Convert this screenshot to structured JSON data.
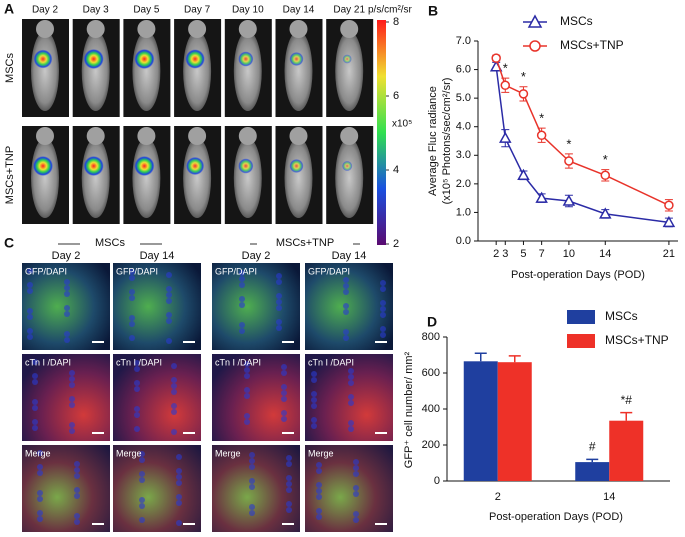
{
  "panel_a": {
    "letter": "A",
    "days": [
      "Day 2",
      "Day 3",
      "Day 5",
      "Day 7",
      "Day 10",
      "Day 14",
      "Day 21"
    ],
    "rows": [
      "MSCs",
      "MSCs+TNP"
    ],
    "colorbar": {
      "unit": "p/s/cm²/sr",
      "scale": "x10⁵",
      "lim": [
        2,
        8
      ],
      "ticks": [
        8,
        6,
        4,
        2
      ]
    }
  },
  "panel_c": {
    "letter": "C",
    "groups": [
      "MSCs",
      "MSCs+TNP"
    ],
    "days": [
      "Day 2",
      "Day 14",
      "Day 2",
      "Day 14"
    ],
    "rows": [
      "GFP/DAPI",
      "cTn I /DAPI",
      "Merge"
    ]
  },
  "chart_data": [
    {
      "type": "line",
      "panel": "B",
      "x": [
        2,
        3,
        5,
        7,
        10,
        14,
        21
      ],
      "xlim": [
        0,
        22
      ],
      "xticks": [
        2,
        3,
        5,
        7,
        10,
        14,
        21
      ],
      "ylim": [
        0,
        7
      ],
      "yticks": [
        {
          "value": 0,
          "label": "0.0"
        },
        {
          "value": 1,
          "label": "1.0"
        },
        {
          "value": 2,
          "label": "2.0"
        },
        {
          "value": 3,
          "label": "3.0"
        },
        {
          "value": 4,
          "label": "4.0"
        },
        {
          "value": 5,
          "label": "5.0"
        },
        {
          "value": 6,
          "label": "6.0"
        },
        {
          "value": 7,
          "label": "7.0"
        }
      ],
      "y_label": [
        "Average Fluc radiance",
        "(x10⁵ Photons/sec/cm²/sr)"
      ],
      "x_label": "Post-operation Days (POD)",
      "series": [
        {
          "name": "MSCs",
          "color": "#2b2ba6",
          "marker": "triangle",
          "values": [
            6.1,
            3.6,
            2.3,
            1.5,
            1.4,
            0.95,
            0.65
          ],
          "errors": [
            0.15,
            0.3,
            0.15,
            0.15,
            0.2,
            0.15,
            0.15
          ]
        },
        {
          "name": "MSCs+TNP",
          "color": "#e8332a",
          "marker": "circle",
          "values": [
            6.4,
            5.45,
            5.15,
            3.7,
            2.8,
            2.3,
            1.25
          ],
          "errors": [
            0.1,
            0.25,
            0.25,
            0.25,
            0.25,
            0.2,
            0.2
          ]
        }
      ],
      "annotations": [
        {
          "x": 3,
          "text": "*"
        },
        {
          "x": 5,
          "text": "*"
        },
        {
          "x": 7,
          "text": "*"
        },
        {
          "x": 10,
          "text": "*"
        },
        {
          "x": 14,
          "text": "*"
        }
      ]
    },
    {
      "type": "bar",
      "panel": "D",
      "categories": [
        "2",
        "14"
      ],
      "ylim": [
        0,
        800
      ],
      "yticks": [
        0,
        200,
        400,
        600,
        800
      ],
      "y_label": "GFP⁺ cell number/ mm²",
      "x_label": "Post-operation Days (POD)",
      "series": [
        {
          "name": "MSCs",
          "color": "#1f3f9f",
          "values": [
            665,
            105
          ],
          "errors": [
            45,
            15
          ]
        },
        {
          "name": "MSCs+TNP",
          "color": "#ee3128",
          "values": [
            660,
            335
          ],
          "errors": [
            35,
            45
          ]
        }
      ],
      "annotations": [
        {
          "category": "14",
          "series": "MSCs",
          "text": "#"
        },
        {
          "category": "14",
          "series": "MSCs+TNP",
          "text": "*#"
        }
      ]
    }
  ]
}
